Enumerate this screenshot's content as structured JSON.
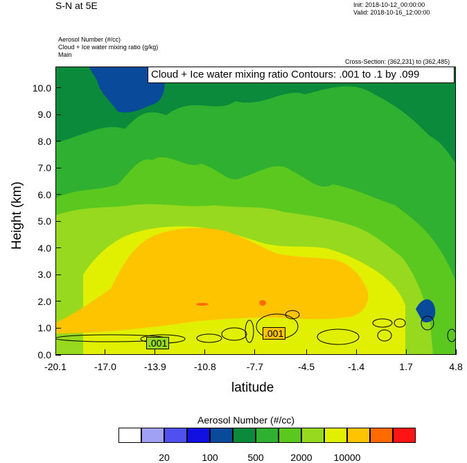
{
  "header": {
    "title": "S-N at 5E",
    "init": "Init: 2018-10-12_00:00:00",
    "valid": "Valid: 2018-10-16_12:00:00",
    "field1": "Aerosol Number   (#/cc)",
    "field2": "Cloud + Ice water mixing ratio   (g/kg)",
    "field3": "Main",
    "cross_section": "Cross-Section: (362,231) to (362,485)"
  },
  "contour_box": "Cloud + Ice water mixing ratio Contours: .001 to .1 by .099",
  "chart_data": {
    "type": "heatmap",
    "xlabel": "latitude",
    "ylabel": "Height (km)",
    "x_ticks": [
      "-20.1",
      "-17.0",
      "-13.9",
      "-10.8",
      "-7.7",
      "-4.5",
      "-1.4",
      "1.7",
      "4.8"
    ],
    "y_ticks": [
      "0.0",
      "1.0",
      "2.0",
      "3.0",
      "4.0",
      "5.0",
      "6.0",
      "7.0",
      "8.0",
      "9.0",
      "10.0"
    ],
    "xlim": [
      -20.1,
      4.8
    ],
    "ylim": [
      0.0,
      10.8
    ],
    "contour_labels": [
      ".001",
      ".001"
    ],
    "colorbar": {
      "title": "Aerosol Number  (#/cc)",
      "colors": [
        "#ffffff",
        "#a0a0f5",
        "#5050f0",
        "#1010e0",
        "#0a4a9a",
        "#0a8a3a",
        "#30b030",
        "#5ac81e",
        "#96d91e",
        "#e0f000",
        "#ffc400",
        "#ff6a00",
        "#ff1414"
      ],
      "labels": [
        "20",
        "100",
        "500",
        "2000",
        "10000"
      ]
    }
  }
}
